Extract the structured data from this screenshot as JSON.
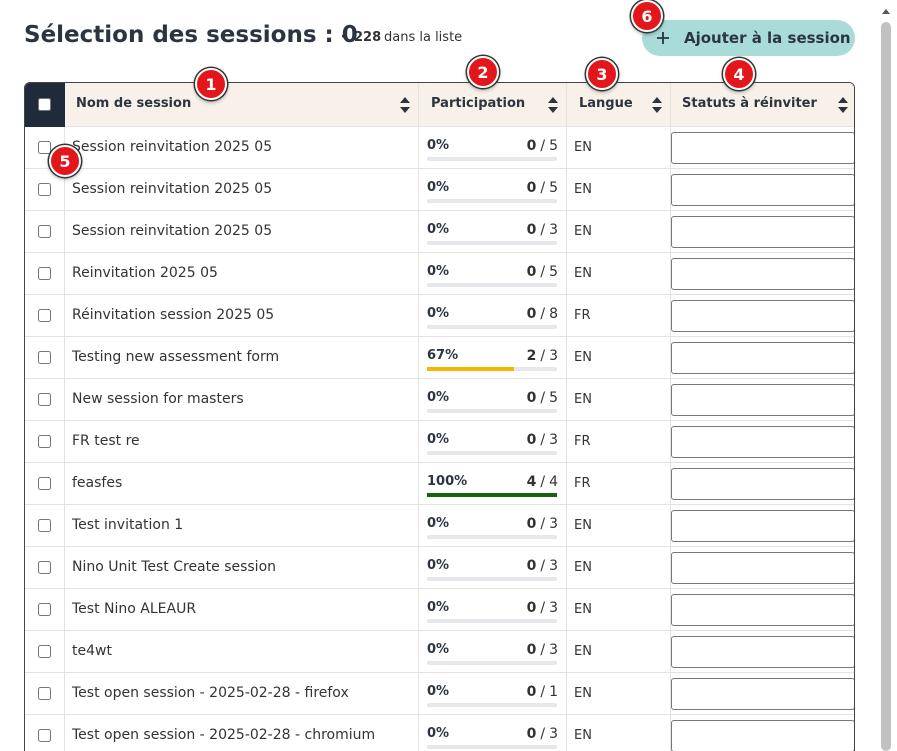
{
  "header": {
    "title": "Sélection des sessions : 0",
    "bullet": "•",
    "count": "228",
    "count_label": "dans la liste",
    "button": "Ajouter à la session"
  },
  "table": {
    "columns": [
      "Nom de session",
      "Participation",
      "Langue",
      "Statuts à réinviter"
    ],
    "separator": "/",
    "rows": [
      {
        "name": "Session reinvitation 2025 05",
        "percent": "0%",
        "done": 0,
        "total": 5,
        "language": "EN"
      },
      {
        "name": "Session reinvitation 2025 05",
        "percent": "0%",
        "done": 0,
        "total": 5,
        "language": "EN"
      },
      {
        "name": "Session reinvitation 2025 05",
        "percent": "0%",
        "done": 0,
        "total": 3,
        "language": "EN"
      },
      {
        "name": "Reinvitation 2025 05",
        "percent": "0%",
        "done": 0,
        "total": 5,
        "language": "EN"
      },
      {
        "name": "Réinvitation session 2025 05",
        "percent": "0%",
        "done": 0,
        "total": 8,
        "language": "FR"
      },
      {
        "name": "Testing new assessment form",
        "percent": "67%",
        "done": 2,
        "total": 3,
        "language": "EN"
      },
      {
        "name": "New session for masters",
        "percent": "0%",
        "done": 0,
        "total": 5,
        "language": "EN"
      },
      {
        "name": "FR test re",
        "percent": "0%",
        "done": 0,
        "total": 3,
        "language": "FR"
      },
      {
        "name": "feasfes",
        "percent": "100%",
        "done": 4,
        "total": 4,
        "language": "FR"
      },
      {
        "name": "Test invitation 1",
        "percent": "0%",
        "done": 0,
        "total": 3,
        "language": "EN"
      },
      {
        "name": "Nino Unit Test Create session",
        "percent": "0%",
        "done": 0,
        "total": 3,
        "language": "EN"
      },
      {
        "name": "Test Nino ALEAUR",
        "percent": "0%",
        "done": 0,
        "total": 3,
        "language": "EN"
      },
      {
        "name": "te4wt",
        "percent": "0%",
        "done": 0,
        "total": 3,
        "language": "EN"
      },
      {
        "name": "Test open session - 2025-02-28 - firefox",
        "percent": "0%",
        "done": 0,
        "total": 1,
        "language": "EN"
      },
      {
        "name": "Test open session - 2025-02-28 - chromium",
        "percent": "0%",
        "done": 0,
        "total": 3,
        "language": "EN"
      }
    ]
  },
  "markers": [
    "1",
    "2",
    "3",
    "4",
    "5",
    "6"
  ]
}
